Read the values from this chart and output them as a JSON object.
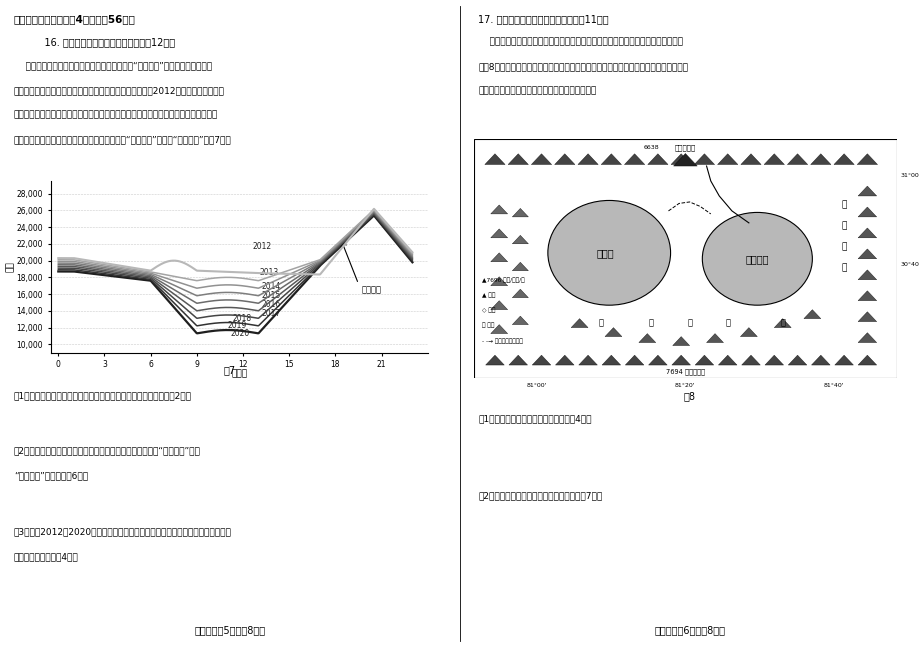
{
  "page_bg": "#ffffff",
  "left_header": "二、非选择题（本大题4小题，入56分）",
  "left_q16_header": "    16. 阅读图文资料，完成下列要求。（12分）",
  "left_q16_text1": "    美国加利福尼亚州拥有丰富的太阳能资源，有“阳光之州”的美誉。当地燃气发",
  "left_q16_text2": "电厂为了满足高峰时间段用电，会有计划地集中并网发电。2012年当地燃气发电厂的",
  "left_q16_text3": "电网净负荷日变化曲线看起来就像驼峰（有两个高峰）。随着当地太阳能发电的快速发",
  "left_q16_text4": "展，燃气发电厂电网净负荷日变化曲线从过去的“驼峰曲线”变为了“鸭子曲线”（图7）。",
  "chart_title": "图7",
  "chart_ylabel": "兆瓦",
  "chart_xlabel": "（时）",
  "chart_x_ticks": [
    0,
    3,
    6,
    9,
    12,
    15,
    18,
    21
  ],
  "chart_y_ticks": [
    10000,
    12000,
    14000,
    16000,
    18000,
    20000,
    22000,
    24000,
    26000,
    28000
  ],
  "years": [
    2012,
    2013,
    2014,
    2015,
    2016,
    2017,
    2018,
    2019,
    2020
  ],
  "annotation_text": "上升斜坡",
  "q1_text": "（1）指出影响加利福尼亚州燃气发电厂电网净负荷大小的因素。（2分）",
  "q2_header": "（2）分析加利福尼亚州燃气发电厂电网净负荷日变化曲线从“驼峰曲线”变为",
  "q2_tail": "“鸭子曲线”的原因。（6分）",
  "q3_header": "（3）说明2012～2020年加利福尼亚州燃气发电厂电网净负荷曲线的变化对燃气发",
  "q3_tail": "电厂产生的影响。（4分）",
  "left_footer": "高三地理第5页（兲8页）",
  "right_q17_header": "17. 阅读图文资料，完成下列要求。（11分）",
  "right_q17_text1": "    在青藏高原冈底斯山脉与喜马拉雅山脉之间有两个孪生姊妹湖：玛旁雍错与拉昂错",
  "right_q17_text2": "（图8）。两湖曾经连成一体，第四纪以来随着全球气候变暖，分化成为两个相对独立的",
  "right_q17_text3": "内陆湖泊，仅北侧有一条窄窄的季节性河道相连。",
  "map_title": "图8",
  "map_q1_text": "（1）分析湖泊一分为二的自然原因。（4分）",
  "map_q2_text": "（2）比较两湖的盐度差异，并说明理由。（7分）",
  "right_footer": "高三地理第6页（兲8页）"
}
